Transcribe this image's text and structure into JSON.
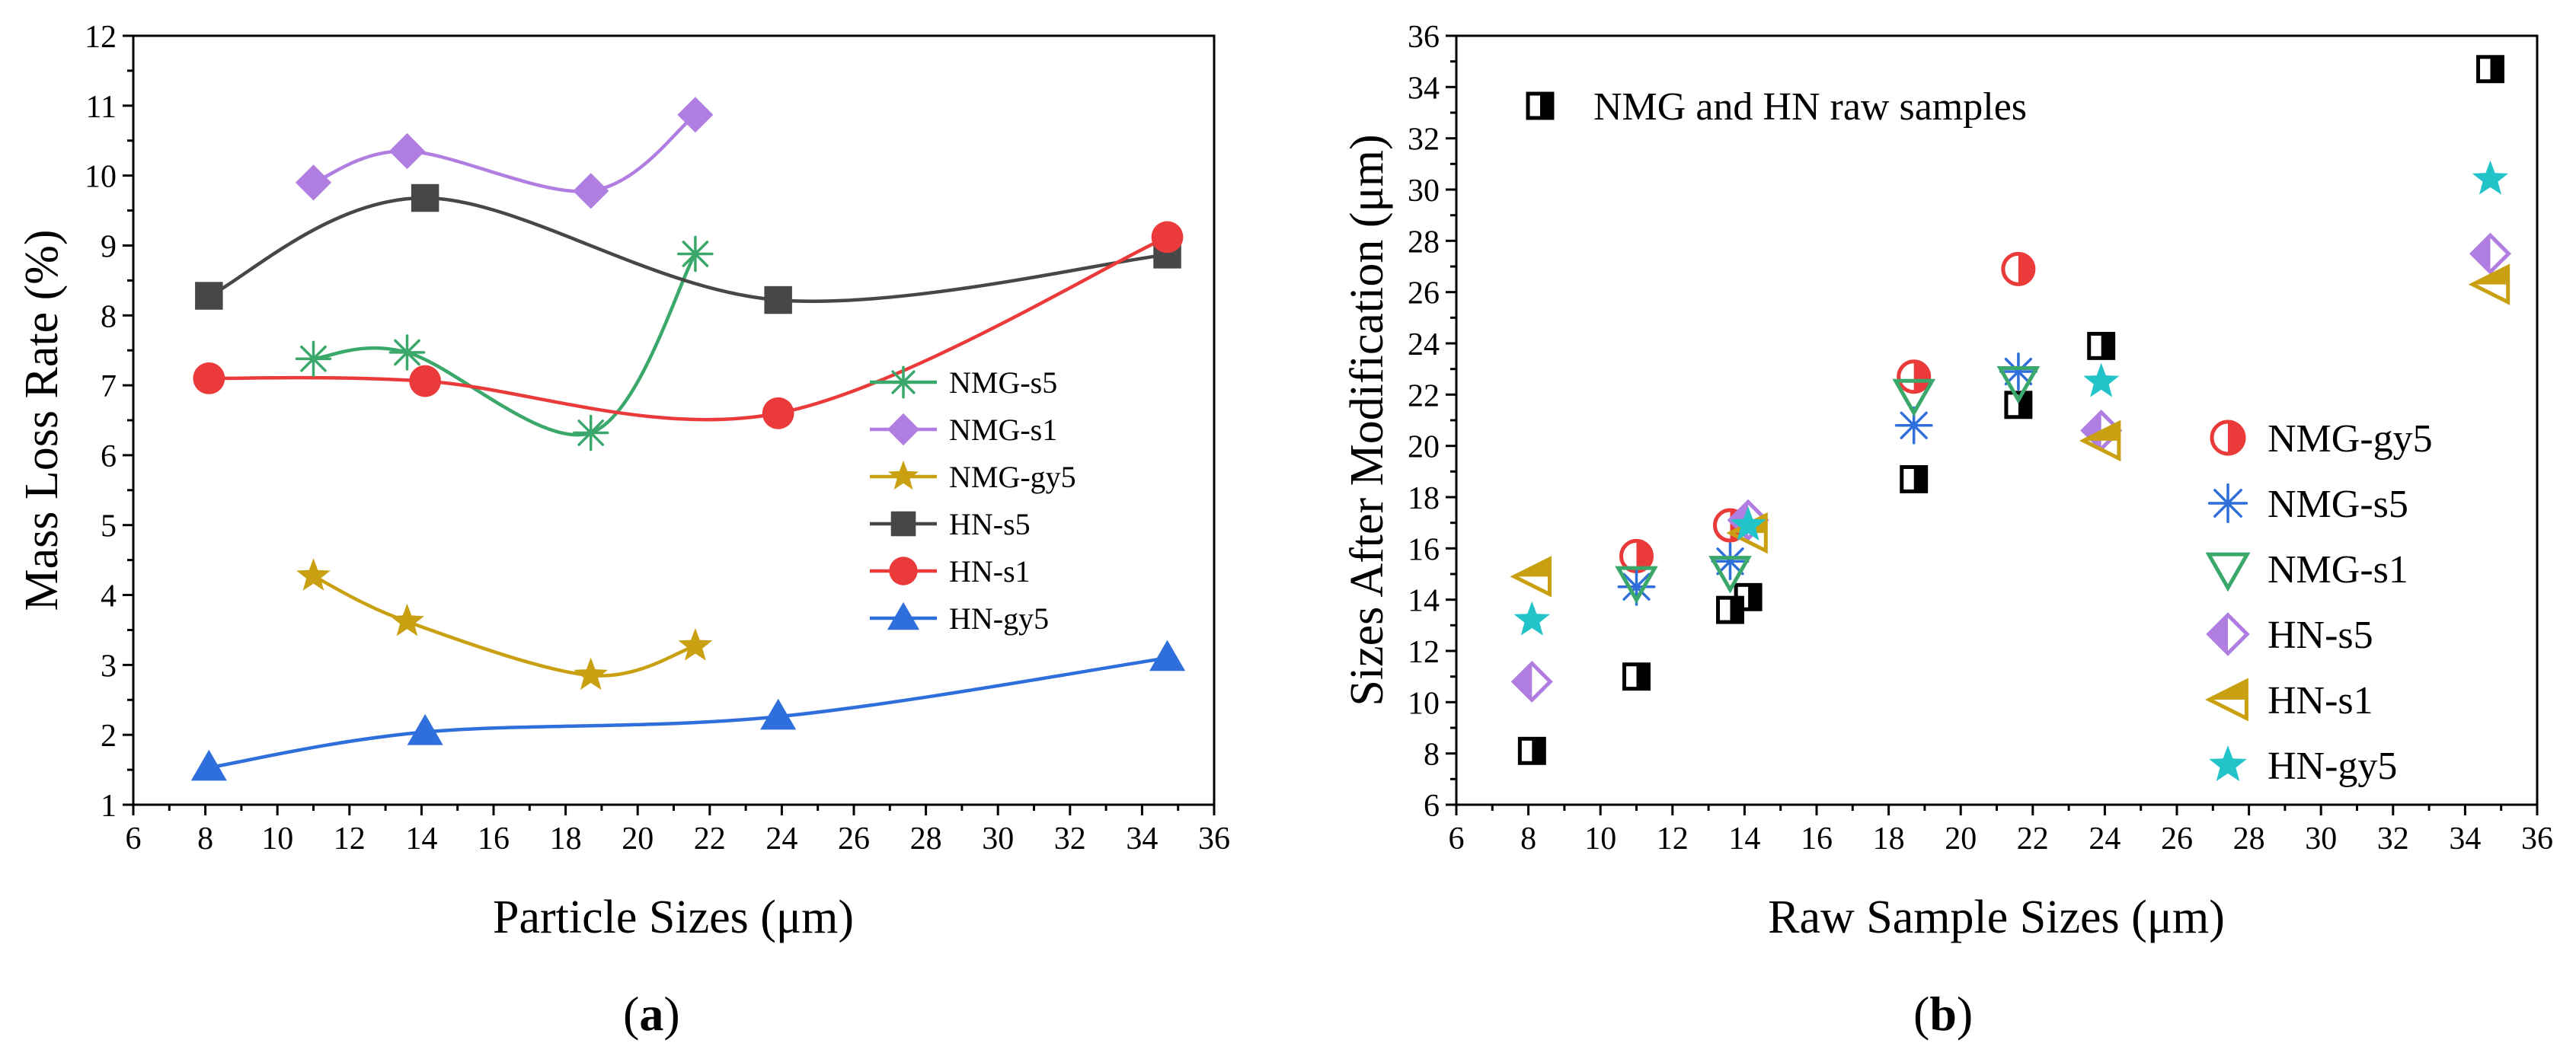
{
  "chart_data": [
    {
      "type": "line",
      "caption_open": "(",
      "caption_letter": "a",
      "caption_close": ")",
      "title": "",
      "xlabel": "Particle Sizes (μm)",
      "ylabel": "Mass Loss Rate (%)",
      "xlim": [
        6,
        36
      ],
      "ylim": [
        1,
        12
      ],
      "xticks": [
        6,
        8,
        10,
        12,
        14,
        16,
        18,
        20,
        22,
        24,
        26,
        28,
        30,
        32,
        34,
        36
      ],
      "yticks": [
        1,
        2,
        3,
        4,
        5,
        6,
        7,
        8,
        9,
        10,
        11,
        12
      ],
      "legend_position": "center-right",
      "series": [
        {
          "name": "NMG-s5",
          "color": "#3aa86b",
          "marker": "asterisk",
          "x": [
            11.0,
            13.6,
            18.7,
            21.6
          ],
          "y": [
            7.38,
            7.47,
            6.32,
            8.88
          ]
        },
        {
          "name": "NMG-s1",
          "color": "#b07ee0",
          "marker": "diamond",
          "x": [
            11.0,
            13.6,
            18.7,
            21.6
          ],
          "y": [
            9.9,
            10.35,
            9.78,
            10.87
          ]
        },
        {
          "name": "NMG-gy5",
          "color": "#c9a012",
          "marker": "star",
          "x": [
            11.0,
            13.6,
            18.7,
            21.6
          ],
          "y": [
            4.27,
            3.62,
            2.85,
            3.27
          ]
        },
        {
          "name": "HN-s5",
          "color": "#474747",
          "marker": "square",
          "x": [
            8.1,
            14.1,
            23.9,
            34.7
          ],
          "y": [
            8.28,
            9.68,
            8.22,
            8.87
          ]
        },
        {
          "name": "HN-s1",
          "color": "#ea3a3a",
          "marker": "circle",
          "x": [
            8.1,
            14.1,
            23.9,
            34.7
          ],
          "y": [
            7.1,
            7.06,
            6.6,
            9.12
          ]
        },
        {
          "name": "HN-gy5",
          "color": "#2f6fdb",
          "marker": "triangle-up",
          "x": [
            8.1,
            14.1,
            23.9,
            34.7
          ],
          "y": [
            1.53,
            2.04,
            2.26,
            3.1
          ]
        }
      ]
    },
    {
      "type": "scatter",
      "caption_open": "(",
      "caption_letter": "b",
      "caption_close": ")",
      "title": "",
      "xlabel": "Raw Sample Sizes (μm)",
      "ylabel": "Sizes After Modification (μm)",
      "xlim": [
        6,
        36
      ],
      "ylim": [
        6,
        36
      ],
      "xticks": [
        6,
        8,
        10,
        12,
        14,
        16,
        18,
        20,
        22,
        24,
        26,
        28,
        30,
        32,
        34,
        36
      ],
      "yticks": [
        6,
        8,
        10,
        12,
        14,
        16,
        18,
        20,
        22,
        24,
        26,
        28,
        30,
        32,
        34,
        36
      ],
      "legend_position": "center-right",
      "raw_series": {
        "name": "NMG and HN raw samples",
        "color": "#000000",
        "marker": "half-square",
        "x": [
          8.1,
          11.0,
          13.6,
          14.1,
          18.7,
          21.6,
          23.9,
          34.7
        ],
        "y": [
          8.1,
          11.0,
          13.6,
          14.1,
          18.7,
          21.6,
          23.9,
          34.7
        ]
      },
      "series": [
        {
          "name": "NMG-gy5",
          "color": "#ea3a3a",
          "marker": "half-circle",
          "x": [
            11.0,
            13.6,
            18.7,
            21.6
          ],
          "y": [
            15.7,
            16.9,
            22.7,
            26.9
          ]
        },
        {
          "name": "NMG-s5",
          "color": "#2f6fdb",
          "marker": "asterisk",
          "x": [
            11.0,
            13.6,
            18.7,
            21.6
          ],
          "y": [
            14.5,
            15.5,
            20.8,
            22.9
          ]
        },
        {
          "name": "NMG-s1",
          "color": "#3aa86b",
          "marker": "triangle-down",
          "x": [
            11.0,
            13.6,
            18.7,
            21.6
          ],
          "y": [
            14.7,
            15.1,
            22.0,
            22.5
          ]
        },
        {
          "name": "HN-s5",
          "color": "#b07ee0",
          "marker": "half-diamond",
          "x": [
            8.1,
            14.1,
            23.9,
            34.7
          ],
          "y": [
            10.8,
            17.1,
            20.6,
            27.5
          ]
        },
        {
          "name": "HN-s1",
          "color": "#c9a012",
          "marker": "half-triangle-left",
          "x": [
            8.1,
            14.1,
            23.9,
            34.7
          ],
          "y": [
            14.9,
            16.6,
            20.2,
            26.3
          ]
        },
        {
          "name": "HN-gy5",
          "color": "#22c3c9",
          "marker": "star",
          "x": [
            8.1,
            14.1,
            23.9,
            34.7
          ],
          "y": [
            13.2,
            16.9,
            22.5,
            30.4
          ]
        }
      ]
    }
  ]
}
